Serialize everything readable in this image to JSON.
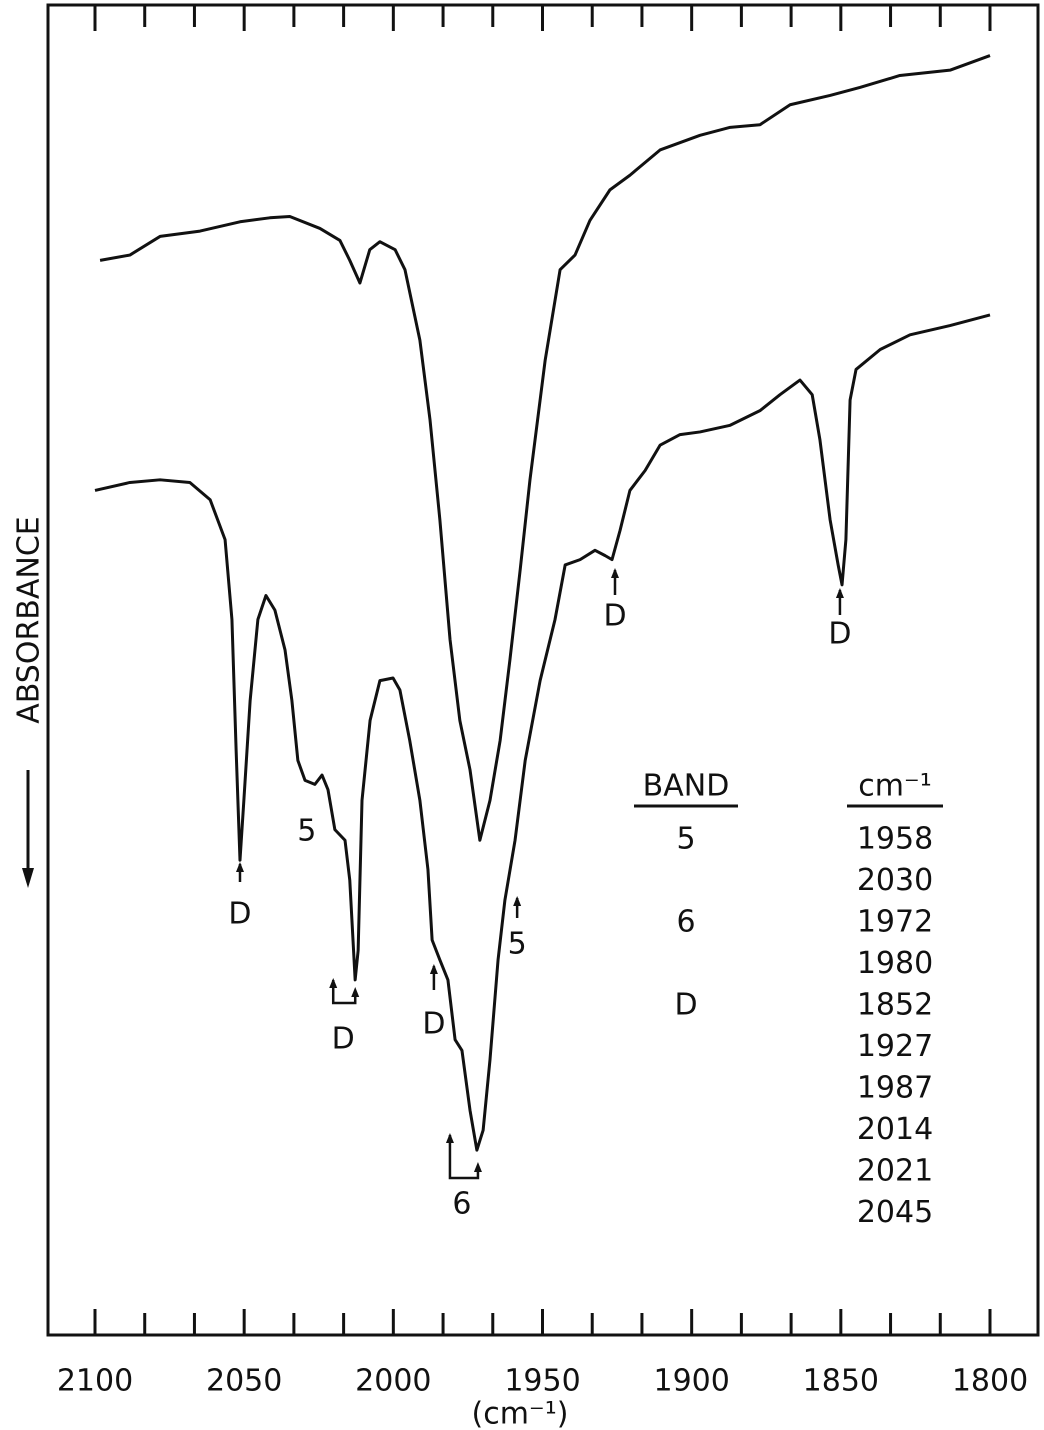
{
  "chart_data": {
    "type": "line",
    "x_label": "(cm⁻¹)",
    "y_label": "ABSORBANCE",
    "xlim": [
      2100,
      1800
    ],
    "xticks": [
      2100,
      2050,
      2000,
      1950,
      1900,
      1850,
      1800
    ],
    "ylim": [
      0,
      100
    ],
    "color": "#111111",
    "series": [
      {
        "x": [
          2098.3,
          2088.3,
          2078.2,
          2064.8,
          2051.4,
          2041.4,
          2034.7,
          2024.6,
          2017.9,
          2014.6,
          2011.2,
          2007.9,
          2004.5,
          1999.4,
          1996.1,
          1991.1,
          1987.7,
          1984.4,
          1981.0,
          1977.7,
          1974.3,
          1971.0,
          1967.6,
          1964.2,
          1960.9,
          1957.5,
          1954.2,
          1949.1,
          1944.1,
          1939.1,
          1934.1,
          1927.4,
          1920.7,
          1910.6,
          1897.2,
          1887.1,
          1877.1,
          1867.0,
          1853.6,
          1843.6,
          1830.2,
          1813.4,
          1800.0
        ],
        "values": [
          80.8,
          81.2,
          82.6,
          83.0,
          83.7,
          84.0,
          84.1,
          83.2,
          82.3,
          80.8,
          79.1,
          81.6,
          82.2,
          81.6,
          80.1,
          74.8,
          68.8,
          61.3,
          52.3,
          46.2,
          42.5,
          37.2,
          40.2,
          44.7,
          50.8,
          57.5,
          64.3,
          73.3,
          80.1,
          81.2,
          83.8,
          86.1,
          87.2,
          89.1,
          90.2,
          90.8,
          91.0,
          92.5,
          93.2,
          93.8,
          94.7,
          95.1,
          96.2
        ]
      },
      {
        "x": [
          2100.0,
          2088.3,
          2078.2,
          2068.2,
          2061.4,
          2056.4,
          2054.1,
          2052.7,
          2051.4,
          2050.1,
          2048.0,
          2045.4,
          2042.7,
          2039.7,
          2036.3,
          2034.0,
          2032.0,
          2029.6,
          2026.3,
          2023.9,
          2021.9,
          2019.6,
          2016.2,
          2014.6,
          2012.8,
          2011.8,
          2010.5,
          2007.8,
          2004.5,
          2000.1,
          1997.8,
          1994.5,
          1991.1,
          1988.4,
          1987.0,
          1984.4,
          1981.7,
          1979.3,
          1977.0,
          1974.3,
          1972.0,
          1969.9,
          1967.6,
          1964.9,
          1962.6,
          1959.2,
          1955.8,
          1950.8,
          1945.8,
          1942.4,
          1937.4,
          1932.4,
          1929.0,
          1926.7,
          1924.0,
          1920.7,
          1915.6,
          1910.6,
          1903.9,
          1897.2,
          1887.1,
          1877.1,
          1870.4,
          1863.7,
          1859.6,
          1857.0,
          1853.6,
          1850.9,
          1849.6,
          1848.3,
          1846.9,
          1844.9,
          1836.8,
          1826.8,
          1813.4,
          1800.0
        ],
        "values": [
          63.5,
          64.1,
          64.3,
          64.1,
          62.8,
          59.8,
          53.8,
          44.0,
          35.7,
          40.2,
          47.7,
          53.8,
          55.6,
          54.5,
          51.5,
          47.7,
          43.2,
          41.7,
          41.4,
          42.1,
          41.0,
          38.0,
          37.2,
          34.2,
          26.7,
          28.9,
          40.2,
          46.2,
          49.2,
          49.4,
          48.5,
          44.7,
          40.2,
          35.0,
          29.7,
          28.2,
          26.7,
          22.2,
          21.4,
          16.9,
          13.9,
          15.4,
          20.7,
          28.2,
          32.7,
          37.2,
          43.2,
          49.2,
          53.8,
          57.9,
          58.3,
          59.0,
          58.6,
          58.3,
          60.5,
          63.5,
          65.0,
          66.9,
          67.7,
          67.9,
          68.4,
          69.5,
          70.7,
          71.8,
          70.7,
          67.3,
          61.3,
          57.9,
          56.4,
          59.8,
          70.3,
          72.6,
          74.1,
          75.2,
          75.9,
          76.7
        ]
      }
    ],
    "annotations": [
      {
        "text": "D",
        "x": 2051.4
      },
      {
        "text": "5",
        "x": 2029.0
      },
      {
        "text": "D",
        "x": 2016.8
      },
      {
        "text": "D",
        "x": 1986.4
      },
      {
        "text": "5",
        "x": 1958.5
      },
      {
        "text": "D",
        "x": 1925.7
      },
      {
        "text": "D",
        "x": 1850.3
      },
      {
        "text": "6",
        "x": 1977.0
      }
    ]
  },
  "table": {
    "headers": [
      "BAND",
      "cm⁻¹"
    ],
    "rows": [
      {
        "band": "5",
        "cm": [
          1958,
          2030
        ]
      },
      {
        "band": "6",
        "cm": [
          1972,
          1980
        ]
      },
      {
        "band": "D",
        "cm": [
          1852,
          1927,
          1987,
          2014,
          2021,
          2045
        ]
      }
    ]
  }
}
